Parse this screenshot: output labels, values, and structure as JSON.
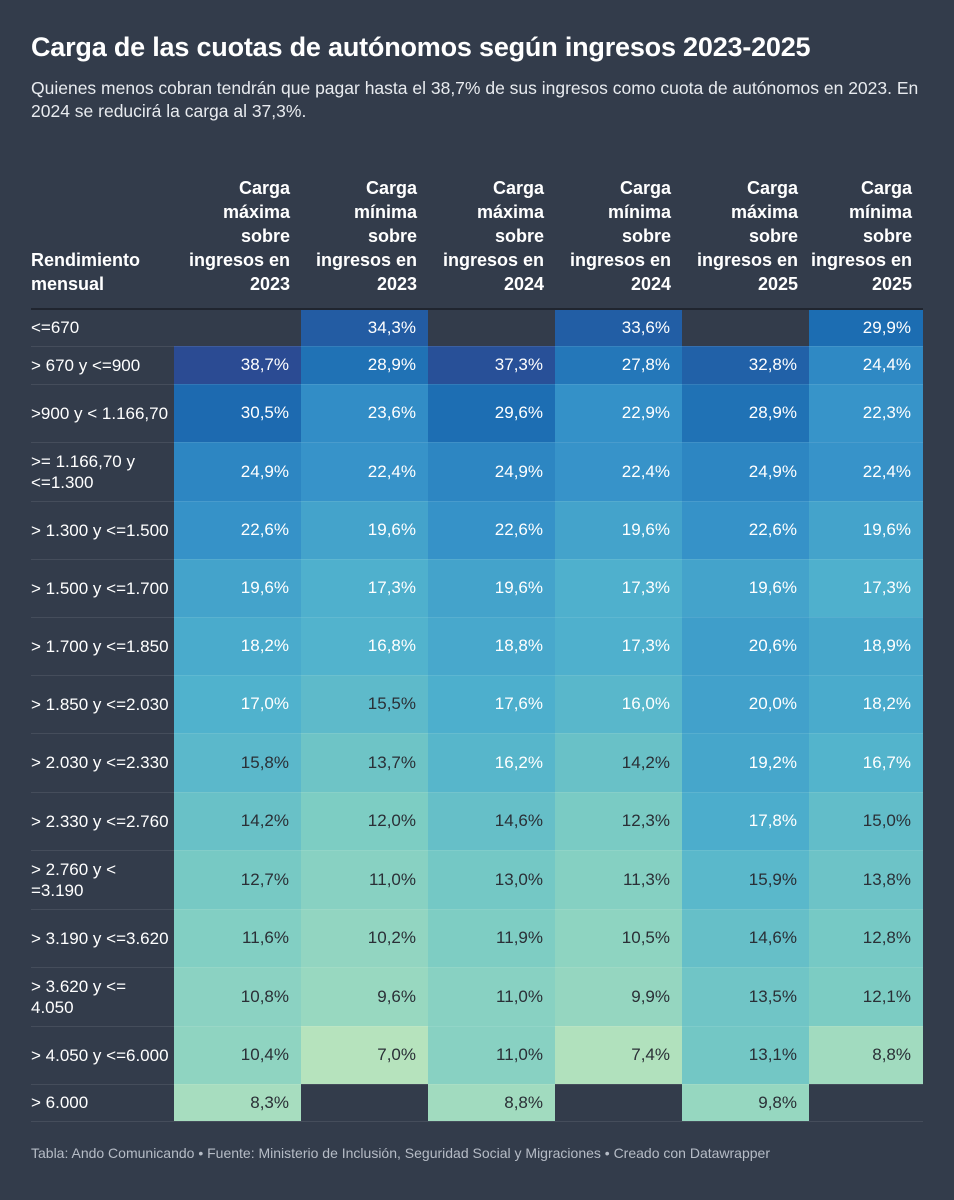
{
  "title": "Carga de las cuotas de autónomos según ingresos 2023-2025",
  "subtitle": "Quienes menos cobran tendrán que pagar hasta el 38,7% de sus ingresos como cuota de autónomos en 2023. En 2024 se reducirá la carga al 37,3%.",
  "footer": "Tabla: Ando Comunicando • Fuente: Ministerio de Inclusión, Seguridad Social y Migraciones • Creado con Datawrapper",
  "colors": {
    "background": "#333c4b",
    "scale_low": "#b6e3bd",
    "scale_high": "#2b4a92"
  },
  "chart_data": {
    "type": "heatmap",
    "row_header": "Rendimiento mensual",
    "columns": [
      "Carga máxima sobre ingresos en 2023",
      "Carga mínima sobre ingresos en 2023",
      "Carga máxima sobre ingresos en 2024",
      "Carga mínima sobre ingresos en 2024",
      "Carga máxima sobre ingresos en 2025",
      "Carga mínima sobre ingresos en 2025"
    ],
    "rows": [
      {
        "label": "<=670",
        "values": [
          "",
          "34,3%",
          "",
          "33,6%",
          "",
          "29,9%"
        ]
      },
      {
        "label": "> 670 y <=900",
        "values": [
          "38,7%",
          "28,9%",
          "37,3%",
          "27,8%",
          "32,8%",
          "24,4%"
        ]
      },
      {
        "label": ">900 y < 1.166,70",
        "values": [
          "30,5%",
          "23,6%",
          "29,6%",
          "22,9%",
          "28,9%",
          "22,3%"
        ]
      },
      {
        "label": ">= 1.166,70 y <=1.300",
        "values": [
          "24,9%",
          "22,4%",
          "24,9%",
          "22,4%",
          "24,9%",
          "22,4%"
        ]
      },
      {
        "label": "> 1.300 y <=1.500",
        "values": [
          "22,6%",
          "19,6%",
          "22,6%",
          "19,6%",
          "22,6%",
          "19,6%"
        ]
      },
      {
        "label": "> 1.500 y <=1.700",
        "values": [
          "19,6%",
          "17,3%",
          "19,6%",
          "17,3%",
          "19,6%",
          "17,3%"
        ]
      },
      {
        "label": "> 1.700 y <=1.850",
        "values": [
          "18,2%",
          "16,8%",
          "18,8%",
          "17,3%",
          "20,6%",
          "18,9%"
        ]
      },
      {
        "label": "> 1.850 y <=2.030",
        "values": [
          "17,0%",
          "15,5%",
          "17,6%",
          "16,0%",
          "20,0%",
          "18,2%"
        ]
      },
      {
        "label": "> 2.030 y <=2.330",
        "values": [
          "15,8%",
          "13,7%",
          "16,2%",
          "14,2%",
          "19,2%",
          "16,7%"
        ]
      },
      {
        "label": "> 2.330 y <=2.760",
        "values": [
          "14,2%",
          "12,0%",
          "14,6%",
          "12,3%",
          "17,8%",
          "15,0%"
        ]
      },
      {
        "label": "> 2.760 y < =3.190",
        "values": [
          "12,7%",
          "11,0%",
          "13,0%",
          "11,3%",
          "15,9%",
          "13,8%"
        ]
      },
      {
        "label": "> 3.190 y <=3.620",
        "values": [
          "11,6%",
          "10,2%",
          "11,9%",
          "10,5%",
          "14,6%",
          "12,8%"
        ]
      },
      {
        "label": "> 3.620 y <= 4.050",
        "values": [
          "10,8%",
          "9,6%",
          "11,0%",
          "9,9%",
          "13,5%",
          "12,1%"
        ]
      },
      {
        "label": "> 4.050 y <=6.000",
        "values": [
          "10,4%",
          "7,0%",
          "11,0%",
          "7,4%",
          "13,1%",
          "8,8%"
        ]
      },
      {
        "label": "> 6.000",
        "values": [
          "8,3%",
          "",
          "8,8%",
          "",
          "9,8%",
          ""
        ]
      }
    ]
  }
}
